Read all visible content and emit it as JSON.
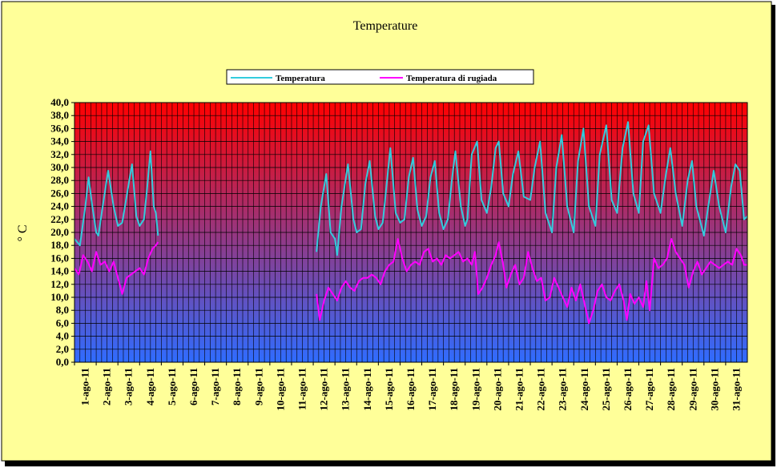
{
  "chart_data": {
    "type": "line",
    "title": "Temperature",
    "ylabel": "° C",
    "xlabel": "",
    "ylim": [
      0,
      40
    ],
    "y_step": 2,
    "y_ticks": [
      "0,0",
      "2,0",
      "4,0",
      "6,0",
      "8,0",
      "10,0",
      "12,0",
      "14,0",
      "16,0",
      "18,0",
      "20,0",
      "22,0",
      "24,0",
      "26,0",
      "28,0",
      "30,0",
      "32,0",
      "34,0",
      "36,0",
      "38,0",
      "40,0"
    ],
    "x_categories": [
      "1-ago-11",
      "2-ago-11",
      "3-ago-11",
      "4-ago-11",
      "5-ago-11",
      "6-ago-11",
      "7-ago-11",
      "8-ago-11",
      "9-ago-11",
      "10-ago-11",
      "11-ago-11",
      "12-ago-11",
      "13-ago-11",
      "14-ago-11",
      "15-ago-11",
      "16-ago-11",
      "17-ago-11",
      "18-ago-11",
      "19-ago-11",
      "20-ago-11",
      "21-ago-11",
      "22-ago-11",
      "23-ago-11",
      "24-ago-11",
      "25-ago-11",
      "26-ago-11",
      "27-ago-11",
      "28-ago-11",
      "29-ago-11",
      "30-ago-11",
      "31-ago-11"
    ],
    "grid": true,
    "legend_position": "top",
    "colors": {
      "frame_bg": "#ffff99",
      "plot_top": "#ff0000",
      "plot_bottom": "#2f6cff",
      "grid": "#000000",
      "temperatura": "#33ccdd",
      "rugiada": "#ff00ff"
    },
    "series": [
      {
        "name": "Temperatura",
        "color": "#33ccdd",
        "points": [
          [
            0.0,
            19.0
          ],
          [
            0.25,
            18.0
          ],
          [
            0.5,
            24.0
          ],
          [
            0.65,
            28.5
          ],
          [
            0.8,
            24.5
          ],
          [
            1.0,
            20.0
          ],
          [
            1.1,
            19.5
          ],
          [
            1.3,
            24.0
          ],
          [
            1.55,
            29.5
          ],
          [
            1.8,
            24.0
          ],
          [
            2.0,
            21.0
          ],
          [
            2.2,
            21.5
          ],
          [
            2.5,
            27.5
          ],
          [
            2.65,
            30.5
          ],
          [
            2.85,
            22.5
          ],
          [
            3.0,
            21.0
          ],
          [
            3.2,
            22.0
          ],
          [
            3.35,
            27.0
          ],
          [
            3.5,
            32.5
          ],
          [
            3.65,
            24.0
          ],
          [
            3.75,
            23.0
          ],
          [
            3.85,
            19.5
          ],
          [
            11.15,
            17.0
          ],
          [
            11.35,
            24.0
          ],
          [
            11.6,
            29.0
          ],
          [
            11.8,
            20.0
          ],
          [
            12.0,
            19.0
          ],
          [
            12.1,
            16.5
          ],
          [
            12.3,
            24.0
          ],
          [
            12.6,
            30.5
          ],
          [
            12.85,
            22.0
          ],
          [
            13.0,
            20.0
          ],
          [
            13.2,
            20.5
          ],
          [
            13.4,
            27.5
          ],
          [
            13.6,
            31.0
          ],
          [
            13.85,
            22.5
          ],
          [
            14.0,
            20.5
          ],
          [
            14.2,
            21.5
          ],
          [
            14.4,
            28.0
          ],
          [
            14.55,
            33.0
          ],
          [
            14.8,
            23.0
          ],
          [
            15.0,
            21.5
          ],
          [
            15.2,
            22.0
          ],
          [
            15.4,
            28.5
          ],
          [
            15.6,
            31.5
          ],
          [
            15.8,
            23.5
          ],
          [
            16.0,
            21.0
          ],
          [
            16.2,
            22.5
          ],
          [
            16.4,
            28.5
          ],
          [
            16.6,
            31.0
          ],
          [
            16.8,
            23.0
          ],
          [
            17.0,
            20.5
          ],
          [
            17.2,
            22.0
          ],
          [
            17.4,
            28.5
          ],
          [
            17.55,
            32.5
          ],
          [
            17.8,
            24.0
          ],
          [
            18.0,
            21.0
          ],
          [
            18.1,
            22.0
          ],
          [
            18.3,
            32.0
          ],
          [
            18.55,
            34.0
          ],
          [
            18.75,
            25.0
          ],
          [
            19.0,
            23.0
          ],
          [
            19.2,
            27.0
          ],
          [
            19.4,
            33.0
          ],
          [
            19.55,
            34.0
          ],
          [
            19.75,
            26.0
          ],
          [
            20.0,
            24.0
          ],
          [
            20.2,
            29.0
          ],
          [
            20.45,
            32.5
          ],
          [
            20.7,
            25.5
          ],
          [
            21.0,
            25.0
          ],
          [
            21.2,
            30.0
          ],
          [
            21.45,
            34.0
          ],
          [
            21.7,
            23.0
          ],
          [
            22.0,
            20.0
          ],
          [
            22.2,
            30.0
          ],
          [
            22.45,
            35.0
          ],
          [
            22.7,
            24.0
          ],
          [
            23.0,
            20.0
          ],
          [
            23.2,
            31.0
          ],
          [
            23.45,
            36.0
          ],
          [
            23.7,
            24.0
          ],
          [
            24.0,
            21.0
          ],
          [
            24.2,
            32.0
          ],
          [
            24.5,
            36.5
          ],
          [
            24.75,
            25.0
          ],
          [
            25.0,
            23.0
          ],
          [
            25.25,
            33.0
          ],
          [
            25.5,
            37.0
          ],
          [
            25.75,
            26.0
          ],
          [
            26.0,
            23.0
          ],
          [
            26.2,
            34.0
          ],
          [
            26.45,
            36.5
          ],
          [
            26.7,
            26.0
          ],
          [
            26.9,
            24.0
          ],
          [
            27.0,
            23.0
          ],
          [
            27.25,
            29.0
          ],
          [
            27.45,
            33.0
          ],
          [
            27.7,
            26.0
          ],
          [
            28.0,
            21.0
          ],
          [
            28.25,
            28.0
          ],
          [
            28.45,
            31.0
          ],
          [
            28.65,
            24.0
          ],
          [
            29.0,
            19.5
          ],
          [
            29.2,
            24.0
          ],
          [
            29.45,
            29.5
          ],
          [
            29.7,
            24.0
          ],
          [
            30.0,
            20.0
          ],
          [
            30.25,
            27.0
          ],
          [
            30.45,
            30.5
          ],
          [
            30.65,
            29.5
          ],
          [
            30.85,
            22.0
          ],
          [
            31.0,
            22.5
          ]
        ]
      },
      {
        "name": "Temperatura di rugiada",
        "color": "#ff00ff",
        "points": [
          [
            0.0,
            14.5
          ],
          [
            0.2,
            13.5
          ],
          [
            0.4,
            16.5
          ],
          [
            0.6,
            15.5
          ],
          [
            0.8,
            14.0
          ],
          [
            1.0,
            17.0
          ],
          [
            1.2,
            15.0
          ],
          [
            1.4,
            15.5
          ],
          [
            1.6,
            14.0
          ],
          [
            1.8,
            15.5
          ],
          [
            2.0,
            13.0
          ],
          [
            2.2,
            10.5
          ],
          [
            2.4,
            13.0
          ],
          [
            2.6,
            13.5
          ],
          [
            2.8,
            14.0
          ],
          [
            3.0,
            14.5
          ],
          [
            3.2,
            13.5
          ],
          [
            3.4,
            16.0
          ],
          [
            3.6,
            17.5
          ],
          [
            3.75,
            18.0
          ],
          [
            3.85,
            18.5
          ],
          [
            11.15,
            10.5
          ],
          [
            11.3,
            6.5
          ],
          [
            11.5,
            9.5
          ],
          [
            11.7,
            11.5
          ],
          [
            11.9,
            10.5
          ],
          [
            12.1,
            9.5
          ],
          [
            12.3,
            11.5
          ],
          [
            12.5,
            12.5
          ],
          [
            12.7,
            11.5
          ],
          [
            12.9,
            11.0
          ],
          [
            13.1,
            12.5
          ],
          [
            13.3,
            13.0
          ],
          [
            13.5,
            13.0
          ],
          [
            13.7,
            13.5
          ],
          [
            13.9,
            13.0
          ],
          [
            14.1,
            12.0
          ],
          [
            14.3,
            14.0
          ],
          [
            14.5,
            15.0
          ],
          [
            14.7,
            15.5
          ],
          [
            14.9,
            19.0
          ],
          [
            15.1,
            16.0
          ],
          [
            15.3,
            14.0
          ],
          [
            15.5,
            15.0
          ],
          [
            15.7,
            15.5
          ],
          [
            15.9,
            15.0
          ],
          [
            16.1,
            17.0
          ],
          [
            16.3,
            17.5
          ],
          [
            16.5,
            15.5
          ],
          [
            16.7,
            16.0
          ],
          [
            16.9,
            15.0
          ],
          [
            17.1,
            16.5
          ],
          [
            17.3,
            16.0
          ],
          [
            17.5,
            16.5
          ],
          [
            17.7,
            17.0
          ],
          [
            17.9,
            15.5
          ],
          [
            18.1,
            16.0
          ],
          [
            18.3,
            15.0
          ],
          [
            18.45,
            17.0
          ],
          [
            18.6,
            10.5
          ],
          [
            18.8,
            11.5
          ],
          [
            19.0,
            13.0
          ],
          [
            19.2,
            15.0
          ],
          [
            19.4,
            16.5
          ],
          [
            19.55,
            18.5
          ],
          [
            19.75,
            15.0
          ],
          [
            19.9,
            11.5
          ],
          [
            20.1,
            13.5
          ],
          [
            20.3,
            15.0
          ],
          [
            20.5,
            12.0
          ],
          [
            20.7,
            13.0
          ],
          [
            20.9,
            17.0
          ],
          [
            21.1,
            14.5
          ],
          [
            21.3,
            12.5
          ],
          [
            21.5,
            13.0
          ],
          [
            21.7,
            9.5
          ],
          [
            21.9,
            10.0
          ],
          [
            22.1,
            13.0
          ],
          [
            22.3,
            11.5
          ],
          [
            22.5,
            10.0
          ],
          [
            22.7,
            8.5
          ],
          [
            22.9,
            11.5
          ],
          [
            23.1,
            9.5
          ],
          [
            23.3,
            12.0
          ],
          [
            23.5,
            9.0
          ],
          [
            23.7,
            6.0
          ],
          [
            23.9,
            8.0
          ],
          [
            24.1,
            11.0
          ],
          [
            24.3,
            12.0
          ],
          [
            24.5,
            10.0
          ],
          [
            24.7,
            9.5
          ],
          [
            24.9,
            11.0
          ],
          [
            25.1,
            12.0
          ],
          [
            25.3,
            9.5
          ],
          [
            25.45,
            6.5
          ],
          [
            25.6,
            10.5
          ],
          [
            25.8,
            9.0
          ],
          [
            26.0,
            10.0
          ],
          [
            26.2,
            8.5
          ],
          [
            26.35,
            12.5
          ],
          [
            26.5,
            8.0
          ],
          [
            26.7,
            16.0
          ],
          [
            26.9,
            14.5
          ],
          [
            27.1,
            15.0
          ],
          [
            27.3,
            16.0
          ],
          [
            27.5,
            19.0
          ],
          [
            27.7,
            17.0
          ],
          [
            27.9,
            16.0
          ],
          [
            28.1,
            15.0
          ],
          [
            28.3,
            11.5
          ],
          [
            28.5,
            14.0
          ],
          [
            28.7,
            15.5
          ],
          [
            28.9,
            13.5
          ],
          [
            29.1,
            14.5
          ],
          [
            29.3,
            15.5
          ],
          [
            29.5,
            15.0
          ],
          [
            29.7,
            14.5
          ],
          [
            29.9,
            15.0
          ],
          [
            30.1,
            15.5
          ],
          [
            30.3,
            15.0
          ],
          [
            30.5,
            17.5
          ],
          [
            30.7,
            16.5
          ],
          [
            30.85,
            15.0
          ],
          [
            31.0,
            15.0
          ]
        ]
      }
    ]
  }
}
